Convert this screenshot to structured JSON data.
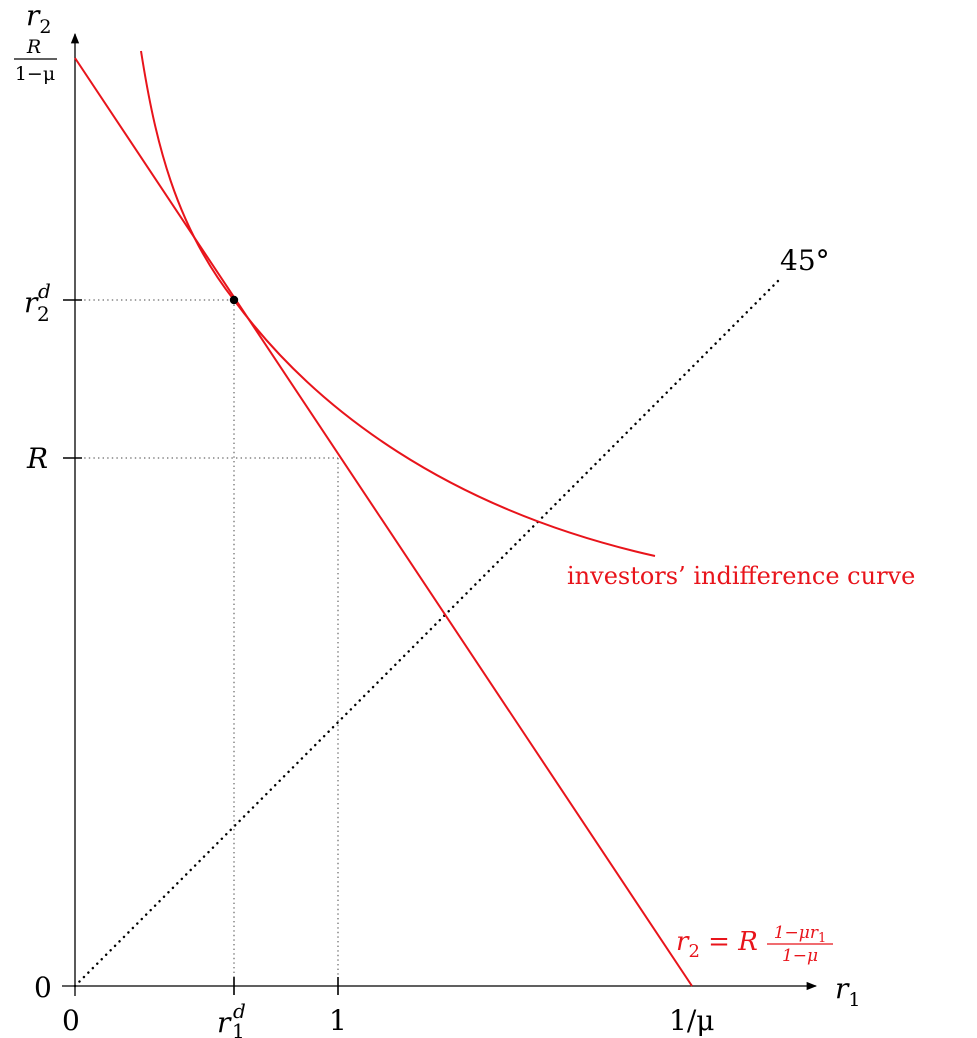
{
  "axes": {
    "x_label": "r",
    "x_label_sub": "1",
    "y_label": "r",
    "y_label_sub": "2"
  },
  "x_ticks": {
    "origin": "0",
    "r1d_base": "r",
    "r1d_sup": "d",
    "r1d_sub": "1",
    "one": "1",
    "inv_mu": "1/μ"
  },
  "y_ticks": {
    "origin": "0",
    "R": "R",
    "r2d_base": "r",
    "r2d_sup": "d",
    "r2d_sub": "2",
    "top_num": "R",
    "top_den": "1−μ"
  },
  "degree_label": "45°",
  "budget_line": {
    "lhs": "r",
    "lhs_sub": "2",
    "eq": " = R",
    "frac_num": "1−μr",
    "frac_num_sub": "1",
    "frac_den": "1−μ"
  },
  "indifference_label": "investors’ indifference curve",
  "colors": {
    "curve": "#e8141b",
    "axis": "#000000",
    "guide": "#444444"
  }
}
